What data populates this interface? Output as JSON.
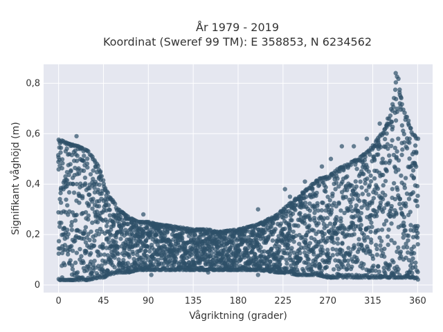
{
  "chart_data": {
    "type": "scatter",
    "title_line1": "År 1979 - 2019",
    "title_line2": "Koordinat (Sweref 99 TM): E 358853, N 6234562",
    "xlabel": "Vågriktning (grader)",
    "ylabel": "Signifikant våghöjd (m)",
    "xlim": [
      -15,
      375
    ],
    "ylim": [
      -0.03,
      0.875
    ],
    "xticks": [
      0,
      45,
      90,
      135,
      180,
      225,
      270,
      315,
      360
    ],
    "yticks": [
      0,
      0.2,
      0.4,
      0.6,
      0.8
    ],
    "ytick_labels": [
      "0",
      "0,2",
      "0,4",
      "0,6",
      "0,8"
    ],
    "grid": true,
    "colors": {
      "marker": "#2e5068",
      "plot_bg": "#e5e7f0",
      "grid": "#ffffff"
    },
    "envelope": {
      "directions": [
        0,
        10,
        20,
        30,
        40,
        45,
        50,
        60,
        70,
        80,
        90,
        100,
        120,
        135,
        150,
        160,
        180,
        200,
        220,
        225,
        240,
        260,
        270,
        280,
        290,
        300,
        310,
        315,
        320,
        330,
        335,
        338,
        340,
        345,
        350,
        355,
        360
      ],
      "upper": [
        0.58,
        0.56,
        0.55,
        0.53,
        0.47,
        0.41,
        0.36,
        0.3,
        0.27,
        0.25,
        0.25,
        0.24,
        0.23,
        0.22,
        0.22,
        0.21,
        0.22,
        0.24,
        0.28,
        0.3,
        0.35,
        0.42,
        0.43,
        0.46,
        0.48,
        0.5,
        0.53,
        0.55,
        0.58,
        0.64,
        0.72,
        0.8,
        0.84,
        0.7,
        0.66,
        0.6,
        0.58
      ],
      "lower": [
        0.02,
        0.02,
        0.02,
        0.02,
        0.03,
        0.03,
        0.04,
        0.05,
        0.05,
        0.06,
        0.06,
        0.06,
        0.06,
        0.06,
        0.06,
        0.06,
        0.06,
        0.06,
        0.05,
        0.05,
        0.04,
        0.04,
        0.03,
        0.03,
        0.03,
        0.03,
        0.03,
        0.03,
        0.03,
        0.03,
        0.03,
        0.03,
        0.03,
        0.03,
        0.03,
        0.03,
        0.02
      ]
    },
    "outliers": [
      {
        "x": 18,
        "y": 0.59
      },
      {
        "x": 42,
        "y": 0.45
      },
      {
        "x": 85,
        "y": 0.28
      },
      {
        "x": 200,
        "y": 0.3
      },
      {
        "x": 227,
        "y": 0.38
      },
      {
        "x": 232,
        "y": 0.35
      },
      {
        "x": 247,
        "y": 0.41
      },
      {
        "x": 264,
        "y": 0.47
      },
      {
        "x": 273,
        "y": 0.5
      },
      {
        "x": 284,
        "y": 0.55
      },
      {
        "x": 296,
        "y": 0.55
      },
      {
        "x": 309,
        "y": 0.58
      },
      {
        "x": 322,
        "y": 0.64
      },
      {
        "x": 330,
        "y": 0.66
      },
      {
        "x": 338,
        "y": 0.84
      },
      {
        "x": 93,
        "y": 0.04
      },
      {
        "x": 150,
        "y": 0.05
      },
      {
        "x": 200,
        "y": 0.04
      }
    ]
  }
}
